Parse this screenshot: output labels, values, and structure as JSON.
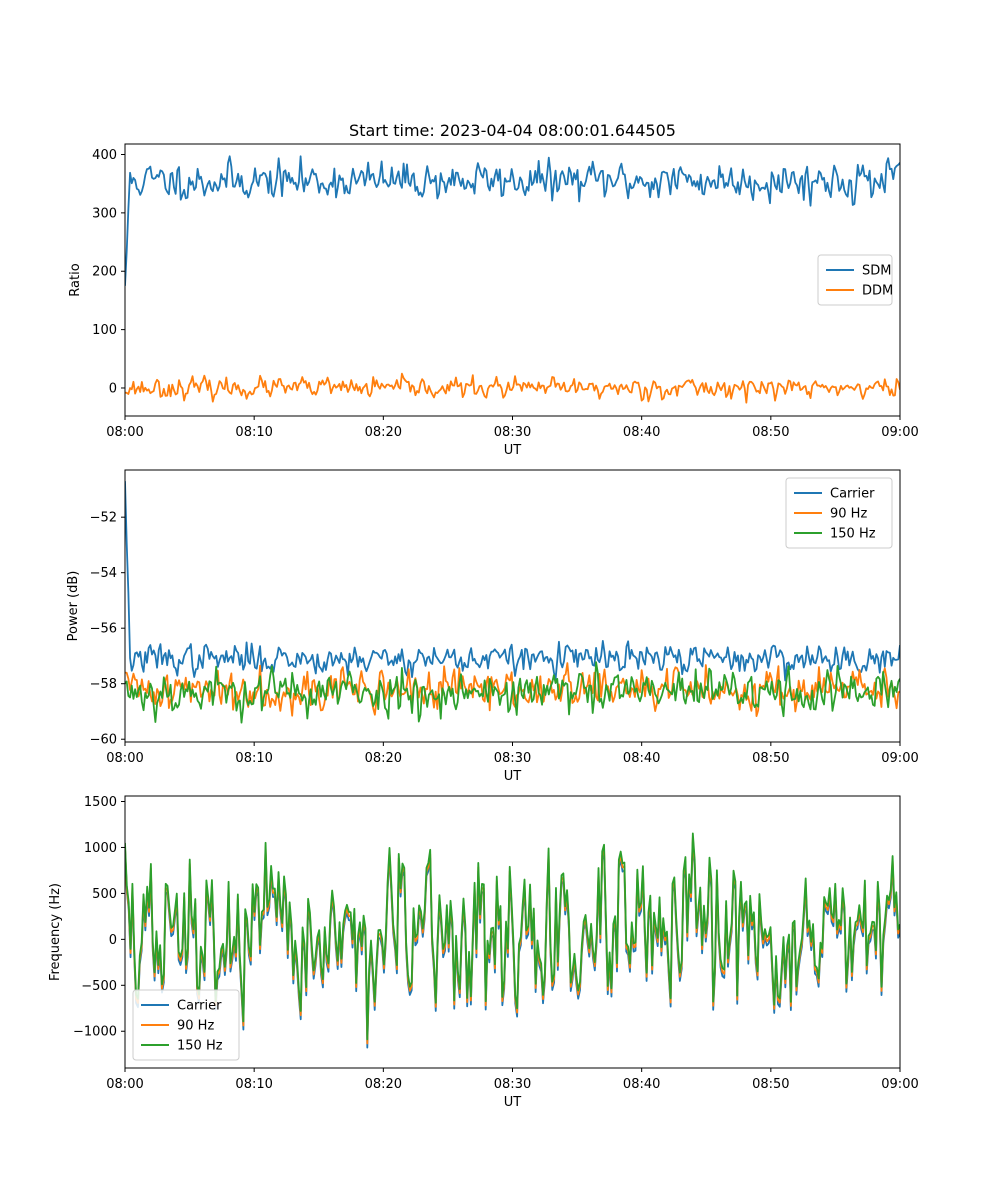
{
  "chart_data": [
    {
      "type": "line",
      "title": "Start time: 2023-04-04 08:00:01.644505",
      "xlabel": "UT",
      "ylabel": "Ratio",
      "x_range_minutes": [
        0,
        60
      ],
      "xticks": [
        "08:00",
        "08:10",
        "08:20",
        "08:30",
        "08:40",
        "08:50",
        "09:00"
      ],
      "ylim": [
        -48,
        418
      ],
      "yticks": [
        0,
        100,
        200,
        300,
        400
      ],
      "legend": "center-right",
      "series": [
        {
          "name": "SDM",
          "color": "#1f77b4",
          "start": 175,
          "base": 355,
          "noise": 15,
          "points": 460,
          "seed": 11
        },
        {
          "name": "DDM",
          "color": "#ff7f0e",
          "start": -8,
          "base": 0,
          "noise": 8,
          "points": 460,
          "seed": 23
        }
      ]
    },
    {
      "type": "line",
      "title": "",
      "xlabel": "UT",
      "ylabel": "Power (dB)",
      "x_range_minutes": [
        0,
        60
      ],
      "xticks": [
        "08:00",
        "08:10",
        "08:20",
        "08:30",
        "08:40",
        "08:50",
        "09:00"
      ],
      "ylim": [
        -60.1,
        -50.3
      ],
      "yticks": [
        -60,
        -58,
        -56,
        -54,
        -52
      ],
      "ytick_labels": [
        "−60",
        "−58",
        "−56",
        "−54",
        "−52"
      ],
      "legend": "top-right",
      "series": [
        {
          "name": "Carrier",
          "color": "#1f77b4",
          "start": -50.7,
          "base": -57.1,
          "noise": 0.25,
          "points": 460,
          "seed": 37
        },
        {
          "name": "90 Hz",
          "color": "#ff7f0e",
          "start": -57.6,
          "base": -58.2,
          "noise": 0.35,
          "points": 460,
          "seed": 41
        },
        {
          "name": "150 Hz",
          "color": "#2ca02c",
          "start": -58.0,
          "base": -58.3,
          "noise": 0.38,
          "points": 460,
          "seed": 53
        }
      ]
    },
    {
      "type": "line",
      "title": "",
      "xlabel": "UT",
      "ylabel": "Frequency (Hz)",
      "x_range_minutes": [
        0,
        60
      ],
      "xticks": [
        "08:00",
        "08:10",
        "08:20",
        "08:30",
        "08:40",
        "08:50",
        "09:00"
      ],
      "ylim": [
        -1400,
        1560
      ],
      "yticks": [
        -1000,
        -500,
        0,
        500,
        1000,
        1500
      ],
      "ytick_labels": [
        "−1000",
        "−500",
        "0",
        "500",
        "1000",
        "1500"
      ],
      "legend": "bottom-left",
      "series": [
        {
          "name": "Carrier",
          "color": "#1f77b4",
          "start": 1000,
          "base": 0,
          "noise": 380,
          "points": 420,
          "seed": 67,
          "offset": -70
        },
        {
          "name": "90 Hz",
          "color": "#ff7f0e",
          "start": 1000,
          "base": 0,
          "noise": 380,
          "points": 420,
          "seed": 67,
          "offset": -25
        },
        {
          "name": "150 Hz",
          "color": "#2ca02c",
          "start": 1050,
          "base": 0,
          "noise": 380,
          "points": 420,
          "seed": 67,
          "offset": 20
        }
      ]
    }
  ]
}
